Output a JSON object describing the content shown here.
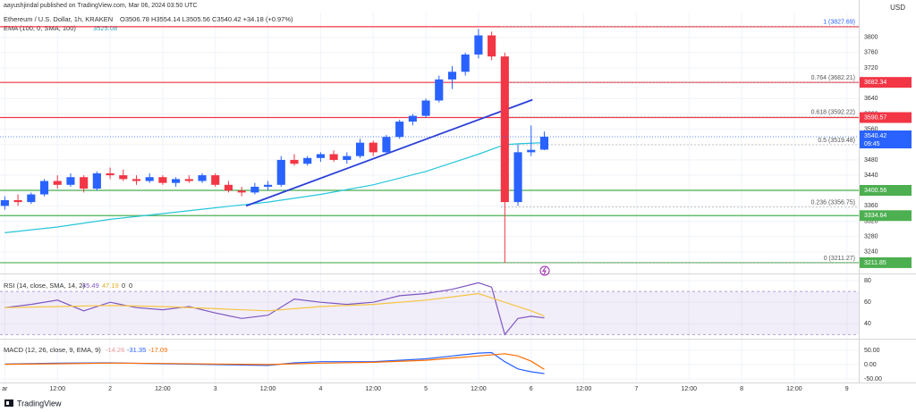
{
  "page": {
    "publisher": "aayushjindal published on TradingView.com, Mar 06, 2024 03:50 UTC",
    "brand": "TradingView"
  },
  "chart_data": [
    {
      "type": "candlestick",
      "title": "Ethereum / U.S. Dollar, 1h, KRAKEN",
      "ohlc_text": "O3506.78 H3554.14 L3505.56 C3540.42 +34.18 (+0.97%)",
      "currency": "USD",
      "x": [
        0,
        3,
        6,
        9,
        12,
        15,
        18,
        21,
        24,
        27,
        30,
        33,
        36,
        39,
        42,
        45,
        48,
        51,
        54,
        57,
        60,
        63,
        66,
        69,
        72,
        75,
        78,
        81,
        84,
        87,
        90,
        93,
        96,
        99,
        102,
        105,
        108,
        111,
        114,
        117,
        120,
        123
      ],
      "open": [
        3360,
        3375,
        3370,
        3390,
        3425,
        3415,
        3435,
        3405,
        3445,
        3440,
        3430,
        3425,
        3435,
        3420,
        3430,
        3425,
        3440,
        3415,
        3400,
        3395,
        3410,
        3415,
        3480,
        3470,
        3485,
        3495,
        3480,
        3490,
        3525,
        3500,
        3540,
        3580,
        3595,
        3635,
        3690,
        3710,
        3755,
        3805,
        3750,
        3370,
        3500,
        3506.78
      ],
      "high": [
        3385,
        3390,
        3395,
        3430,
        3440,
        3445,
        3440,
        3450,
        3460,
        3455,
        3440,
        3445,
        3440,
        3435,
        3440,
        3445,
        3445,
        3425,
        3410,
        3420,
        3425,
        3490,
        3495,
        3490,
        3500,
        3505,
        3500,
        3535,
        3530,
        3545,
        3585,
        3600,
        3640,
        3700,
        3725,
        3760,
        3822,
        3815,
        3760,
        3520,
        3570,
        3554.14
      ],
      "low": [
        3350,
        3360,
        3365,
        3385,
        3405,
        3410,
        3395,
        3400,
        3430,
        3425,
        3415,
        3420,
        3415,
        3410,
        3420,
        3420,
        3410,
        3395,
        3385,
        3390,
        3400,
        3410,
        3465,
        3465,
        3475,
        3475,
        3470,
        3485,
        3490,
        3495,
        3535,
        3570,
        3590,
        3630,
        3665,
        3700,
        3745,
        3740,
        3211,
        3360,
        3490,
        3505.56
      ],
      "close": [
        3375,
        3370,
        3390,
        3425,
        3415,
        3435,
        3405,
        3445,
        3440,
        3430,
        3425,
        3435,
        3420,
        3430,
        3425,
        3440,
        3415,
        3400,
        3395,
        3410,
        3415,
        3480,
        3470,
        3485,
        3495,
        3480,
        3490,
        3525,
        3500,
        3540,
        3580,
        3595,
        3635,
        3690,
        3710,
        3755,
        3805,
        3750,
        3370,
        3500,
        3506.24,
        3540.42
      ],
      "up_color": "#2962ff",
      "down_color": "#f23645",
      "series": [
        {
          "name": "EMA (100, 0, SMA, 100)",
          "value_text": "3525.08",
          "color": "#26c6da",
          "x": [
            0,
            12,
            24,
            36,
            48,
            60,
            72,
            84,
            96,
            108,
            114,
            117,
            123
          ],
          "values": [
            3290,
            3305,
            3325,
            3340,
            3355,
            3370,
            3390,
            3415,
            3450,
            3495,
            3520,
            3522,
            3525
          ]
        }
      ],
      "trend_line": {
        "x": [
          55,
          120.3
        ],
        "values": [
          3360,
          3637
        ],
        "color": "#2a3fd6"
      },
      "levels": [
        {
          "value": 3827.69,
          "color": "#f23645",
          "badge": false
        },
        {
          "value": 3682.34,
          "color": "#f23645",
          "badge": true
        },
        {
          "value": 3590.57,
          "color": "#f23645",
          "badge": true
        },
        {
          "value": 3400.56,
          "color": "#4caf50",
          "badge": true
        },
        {
          "value": 3334.64,
          "color": "#4caf50",
          "badge": true
        },
        {
          "value": 3211.85,
          "color": "#4caf50",
          "badge": true
        }
      ],
      "fib_levels": [
        {
          "value": 3827.69,
          "label": "1 (3827.69)",
          "color": "#2962ff"
        },
        {
          "value": 3682.21,
          "label": "0.764 (3682.21)",
          "color": "#555"
        },
        {
          "value": 3592.22,
          "label": "0.618 (3592.22)",
          "color": "#555"
        },
        {
          "value": 3519.48,
          "label": "0.5 (3519.48)",
          "color": "#555"
        },
        {
          "value": 3356.75,
          "label": "0.236 (3356.75)",
          "color": "#555"
        },
        {
          "value": 3211.27,
          "label": "0 (3211.27)",
          "color": "#555"
        }
      ],
      "last_price": {
        "value": 3540.42,
        "countdown": "09:45",
        "color": "#2962ff"
      },
      "xlim": [
        -1.1,
        194.7
      ],
      "ylim": [
        3186,
        3846
      ],
      "yticks": [
        3240,
        3280,
        3320,
        3360,
        3400,
        3440,
        3480,
        3520,
        3560,
        3600,
        3640,
        3680,
        3720,
        3760,
        3800
      ]
    },
    {
      "type": "line",
      "title": "RSI (14, close, SMA, 14, 2)",
      "extra_values": [
        0,
        0
      ],
      "series": [
        {
          "color": "#7e57c2",
          "x": [
            0,
            6,
            12,
            18,
            24,
            30,
            36,
            42,
            48,
            54,
            60,
            66,
            72,
            78,
            84,
            90,
            96,
            102,
            108,
            111,
            114,
            117,
            120,
            123
          ],
          "values": [
            55,
            58,
            62,
            52,
            60,
            55,
            53,
            56,
            50,
            45,
            48,
            63,
            60,
            58,
            60,
            66,
            68,
            72,
            78,
            74,
            30,
            45,
            47,
            45.49
          ]
        },
        {
          "color": "#f5c542",
          "x": [
            0,
            12,
            24,
            36,
            48,
            60,
            72,
            84,
            96,
            108,
            114,
            120,
            123
          ],
          "values": [
            55,
            56,
            57,
            56,
            54,
            52,
            56,
            58,
            62,
            68,
            60,
            52,
            47.19
          ]
        }
      ],
      "band": [
        30,
        70
      ],
      "band_color": "#7e57c2",
      "xlim": [
        -1.1,
        194.7
      ],
      "ylim": [
        27,
        85
      ],
      "yticks": [
        40,
        60,
        80
      ]
    },
    {
      "type": "line",
      "title": "MACD (12, 26, close, 9, EMA, 9)",
      "histogram_value": -14.26,
      "series": [
        {
          "color": "#2962ff",
          "x": [
            0,
            12,
            24,
            36,
            48,
            60,
            66,
            72,
            84,
            96,
            102,
            108,
            111,
            114,
            117,
            120,
            123
          ],
          "values": [
            2,
            5,
            6,
            3,
            0,
            -3,
            6,
            10,
            10,
            20,
            30,
            40,
            42,
            10,
            -15,
            -25,
            -31.35
          ]
        },
        {
          "color": "#ff6d00",
          "x": [
            0,
            12,
            24,
            36,
            48,
            60,
            72,
            84,
            96,
            108,
            114,
            117,
            120,
            123
          ],
          "values": [
            1,
            3,
            5,
            4,
            2,
            0,
            5,
            8,
            15,
            30,
            38,
            30,
            12,
            -17.09
          ]
        }
      ],
      "xlim": [
        -1.1,
        194.7
      ],
      "ylim": [
        -62.5,
        84
      ],
      "yticks": [
        {
          "value": 50,
          "label": "50.00"
        },
        {
          "value": 0,
          "label": "0.00"
        },
        {
          "value": -50,
          "label": "-50.00"
        }
      ],
      "xticks": [
        {
          "value": 0,
          "label": "ar"
        },
        {
          "value": 12,
          "label": "12:00"
        },
        {
          "value": 24,
          "label": "2"
        },
        {
          "value": 36,
          "label": "12:00"
        },
        {
          "value": 48,
          "label": "3"
        },
        {
          "value": 60,
          "label": "12:00"
        },
        {
          "value": 72,
          "label": "4"
        },
        {
          "value": 84,
          "label": "12:00"
        },
        {
          "value": 96,
          "label": "5"
        },
        {
          "value": 108,
          "label": "12:00"
        },
        {
          "value": 120,
          "label": "6"
        },
        {
          "value": 132,
          "label": "12:00"
        },
        {
          "value": 144,
          "label": "7"
        },
        {
          "value": 156,
          "label": "12:00"
        },
        {
          "value": 168,
          "label": "8"
        },
        {
          "value": 180,
          "label": "12:00"
        },
        {
          "value": 192,
          "label": "9"
        }
      ]
    }
  ]
}
